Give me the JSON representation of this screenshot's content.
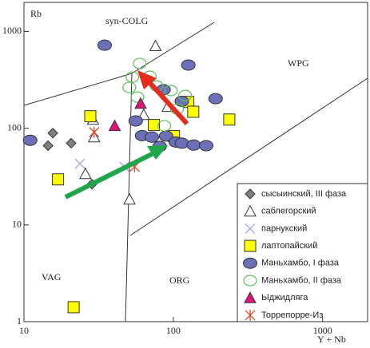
{
  "chart_data": {
    "type": "scatter",
    "y_label": "Rb",
    "x_label": "Y + Nb",
    "annotations": [
      "syn-COLG",
      "WPG",
      "VAG",
      "ORG"
    ],
    "log_x": true,
    "log_y": true,
    "xlim": [
      10,
      2000
    ],
    "ylim": [
      1,
      2000
    ],
    "xticks": [
      10,
      100,
      1000
    ],
    "yticks": [
      1,
      10,
      100,
      1000
    ],
    "legend": "lower right",
    "series": [
      {
        "name": "сысыинский,  III фаза",
        "marker": "diamond",
        "color": "#808080",
        "x": [
          15.6,
          14.5,
          20.7,
          28.5
        ],
        "values": [
          89,
          66,
          70,
          26.4
        ]
      },
      {
        "name": "саблегорский",
        "marker": "triangle",
        "color": "#ffffff",
        "x": [
          29,
          29.5,
          25.8,
          50.9,
          63.4,
          76,
          91.7
        ],
        "values": [
          123,
          81,
          33.8,
          18.4,
          138,
          710,
          167
        ]
      },
      {
        "name": "парнукский",
        "marker": "cross",
        "color": "#a0a0ee",
        "x": [
          23.7,
          47
        ],
        "values": [
          43,
          40
        ]
      },
      {
        "name": "лаптопайский",
        "marker": "square",
        "color": "#ffff00",
        "x": [
          16.9,
          21.5,
          27.8,
          74.1,
          101,
          126,
          136,
          237
        ],
        "values": [
          29.6,
          1.41,
          133,
          108,
          83,
          187,
          148,
          123
        ]
      },
      {
        "name": "Маньхамбо, I фаза",
        "marker": "oval",
        "color": "#6b70b8",
        "x": [
          11,
          34.7,
          56,
          61.8,
          71.8,
          81,
          89.5,
          104,
          114,
          137,
          166,
          126,
          192,
          114,
          86
        ],
        "values": [
          75,
          722,
          119,
          84,
          81,
          65,
          83,
          72,
          70,
          67,
          66,
          450,
          202,
          190,
          250
        ]
      },
      {
        "name": "Маньхамбо, II фаза",
        "marker": "circle",
        "color": "#5cbf5c",
        "x": [
          59.6,
          53.2,
          50.8,
          57.5,
          69.6,
          77.1,
          96.3,
          106,
          87,
          120
        ],
        "values": [
          467,
          338,
          264,
          210,
          344,
          274,
          245,
          158,
          106,
          218
        ]
      },
      {
        "name": "Ыджидляга",
        "marker": "triangle",
        "color": "#e0157a",
        "x": [
          40.5,
          60.4
        ],
        "values": [
          106,
          180
        ]
      },
      {
        "name": "Торрепорре-Из",
        "marker": "asterisk",
        "color": "#e04a2a",
        "x": [
          29.5,
          55
        ],
        "values": [
          91,
          40
        ]
      }
    ]
  }
}
